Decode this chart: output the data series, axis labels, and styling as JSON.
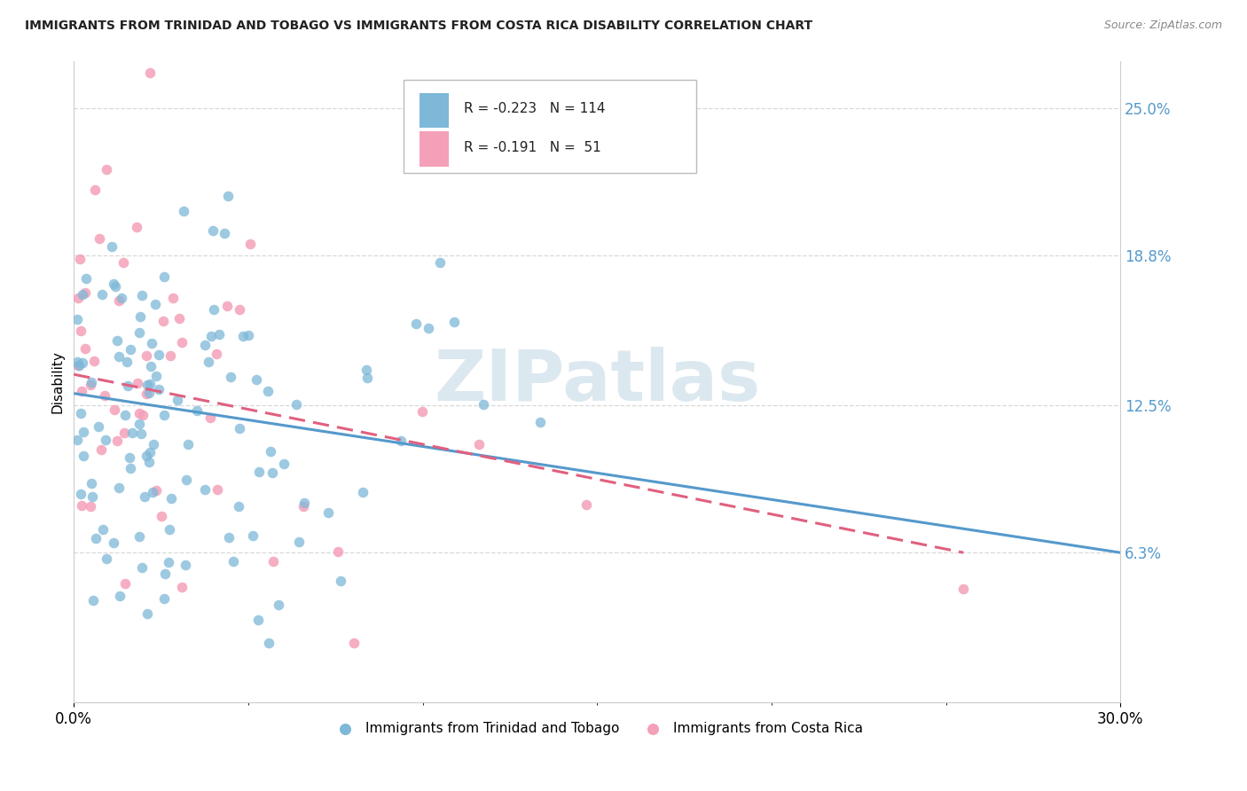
{
  "title": "IMMIGRANTS FROM TRINIDAD AND TOBAGO VS IMMIGRANTS FROM COSTA RICA DISABILITY CORRELATION CHART",
  "source": "Source: ZipAtlas.com",
  "ylabel": "Disability",
  "xlim": [
    0.0,
    0.3
  ],
  "ylim": [
    0.0,
    0.27
  ],
  "yticks": [
    0.063,
    0.125,
    0.188,
    0.25
  ],
  "ytick_labels": [
    "6.3%",
    "12.5%",
    "18.8%",
    "25.0%"
  ],
  "series1_color": "#7db8d8",
  "series2_color": "#f4a0b8",
  "series1_label": "Immigrants from Trinidad and Tobago",
  "series2_label": "Immigrants from Costa Rica",
  "R1": -0.223,
  "N1": 114,
  "R2": -0.191,
  "N2": 51,
  "watermark_text": "ZIPatlas",
  "background_color": "#ffffff",
  "grid_color": "#d8d8d8",
  "trend1_color": "#5599cc",
  "trend2_color": "#e06080",
  "trend1_y0": 0.13,
  "trend1_y1": 0.063,
  "trend1_x0": 0.0,
  "trend1_x1": 0.3,
  "trend2_y0": 0.138,
  "trend2_y1": 0.063,
  "trend2_x0": 0.0,
  "trend2_x1": 0.255
}
